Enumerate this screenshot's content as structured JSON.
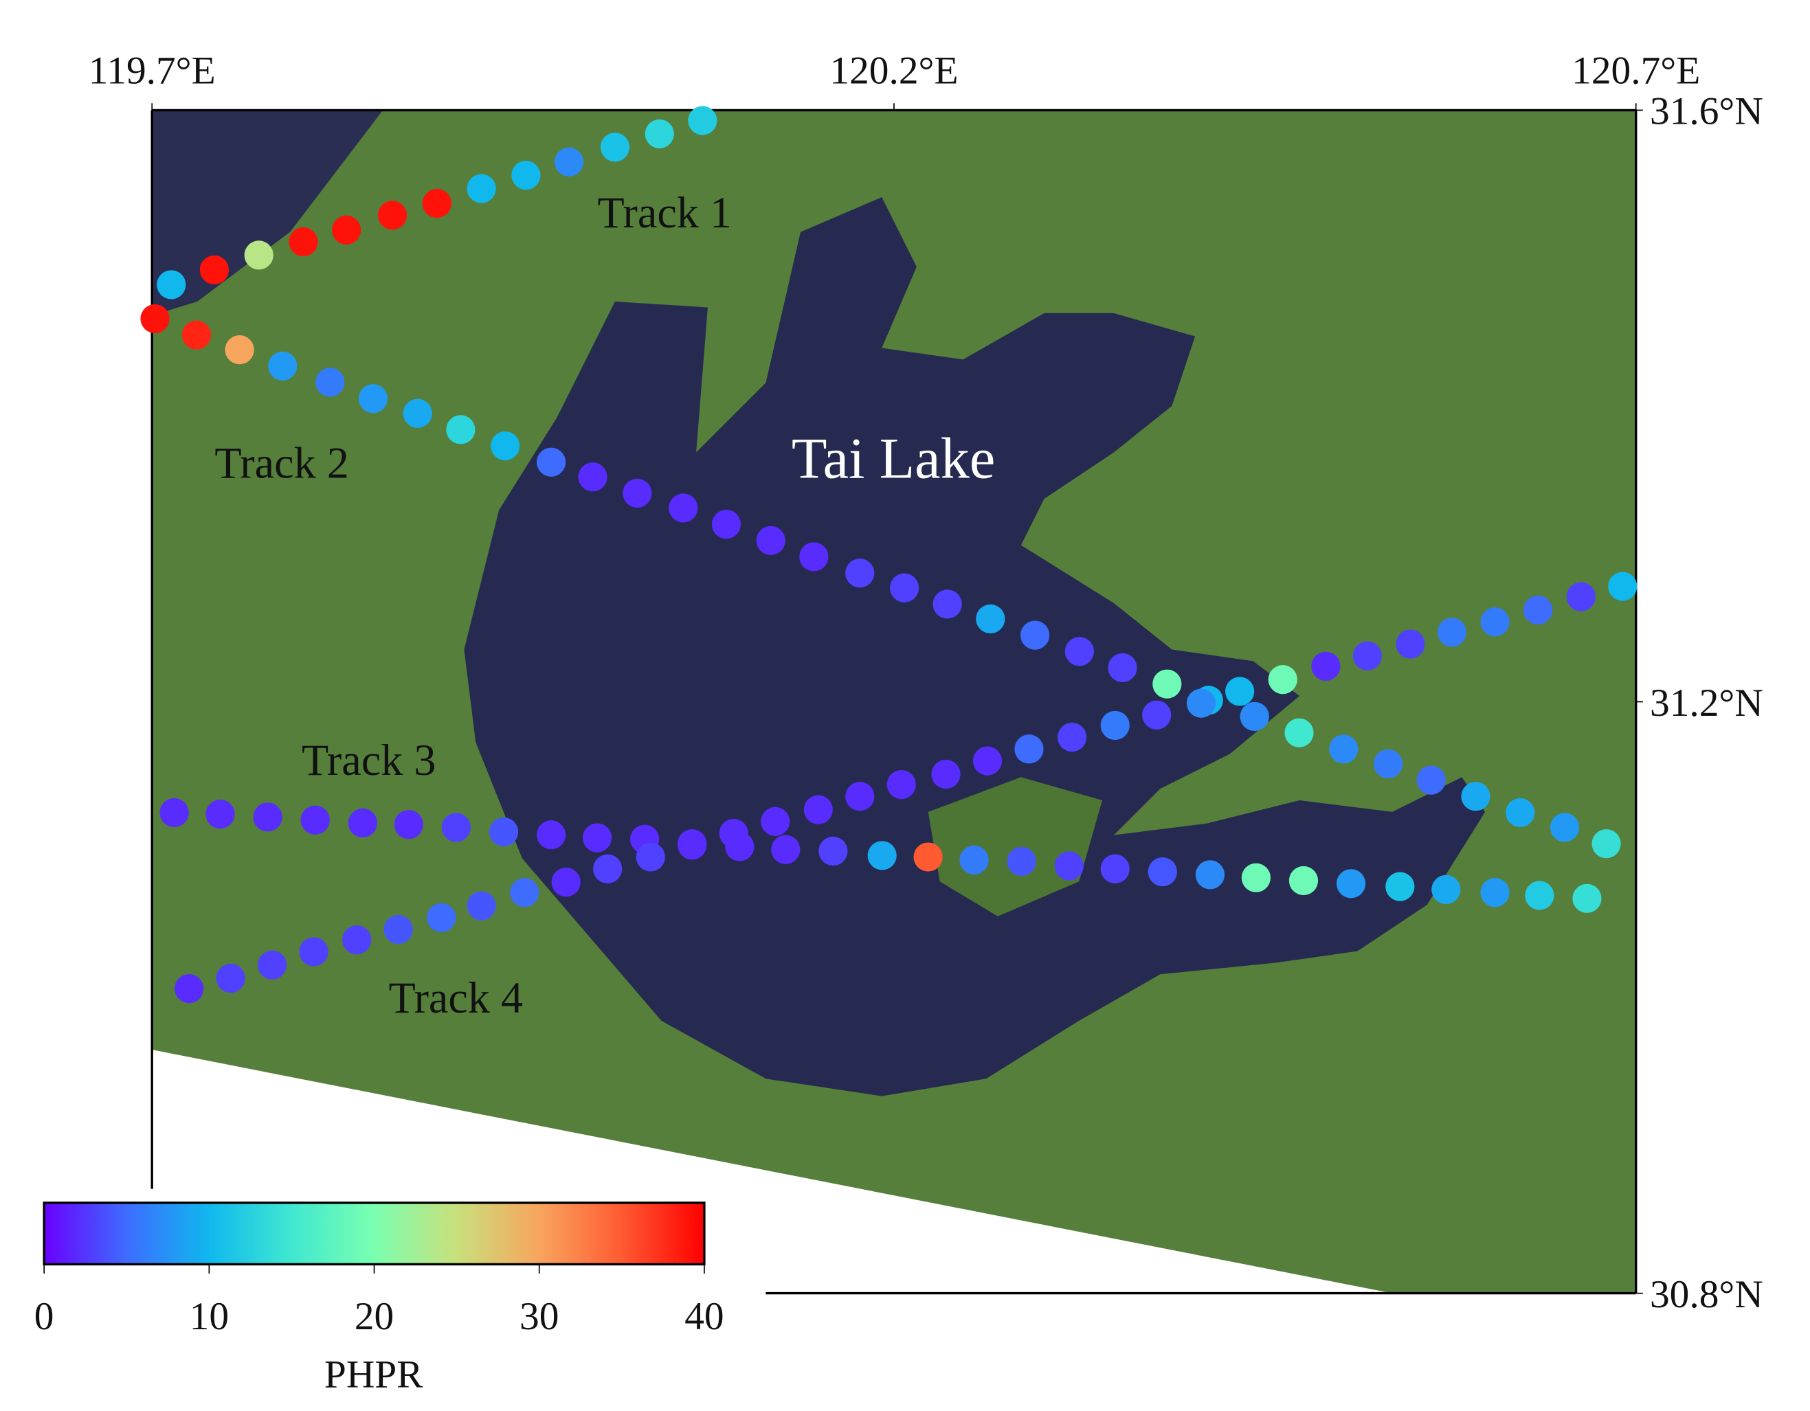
{
  "chart_data": {
    "type": "scatter",
    "annotation": "Tai Lake",
    "xlim": [
      119.7,
      120.7
    ],
    "xticks": [
      {
        "value": 119.7,
        "label": "119.7°E"
      },
      {
        "value": 120.2,
        "label": "120.2°E"
      },
      {
        "value": 120.7,
        "label": "120.7°E"
      }
    ],
    "ylim": [
      30.8,
      31.6
    ],
    "yticks": [
      {
        "value": 30.8,
        "label": "30.8°N"
      },
      {
        "value": 31.2,
        "label": "31.2°N"
      },
      {
        "value": 31.6,
        "label": "31.6°N"
      }
    ],
    "colorbar": {
      "label": "PHPR",
      "lim": [
        0,
        40
      ],
      "ticks": [
        0,
        10,
        20,
        30,
        40
      ],
      "colors": [
        "#6a00ff",
        "#3d6cff",
        "#10b8ee",
        "#40e8d0",
        "#7affb0",
        "#c8e07c",
        "#f8a55e",
        "#ff5a32",
        "#ff0000"
      ]
    },
    "series": [
      {
        "name": "Track 1",
        "x": [
          119.713,
          119.742,
          119.772,
          119.802,
          119.831,
          119.862,
          119.892,
          119.922,
          119.952,
          119.981,
          120.012,
          120.042,
          120.071
        ],
        "y": [
          31.482,
          31.492,
          31.502,
          31.511,
          31.519,
          31.529,
          31.537,
          31.547,
          31.556,
          31.565,
          31.575,
          31.584,
          31.593
        ],
        "values": [
          10,
          39,
          24,
          39,
          39,
          39,
          39,
          10,
          10,
          7,
          11,
          13,
          12
        ]
      },
      {
        "name": "Track 2",
        "x": [
          119.702,
          119.73,
          119.759,
          119.788,
          119.82,
          119.849,
          119.879,
          119.908,
          119.938,
          119.969,
          119.997,
          120.027,
          120.058,
          120.087,
          120.117,
          120.146,
          120.177,
          120.207,
          120.236,
          120.265,
          120.295,
          120.325,
          120.354,
          120.384,
          120.412,
          120.443,
          120.473,
          120.503,
          120.533,
          120.562,
          120.592,
          120.622,
          120.652,
          120.68
        ],
        "y": [
          31.459,
          31.448,
          31.438,
          31.427,
          31.416,
          31.405,
          31.395,
          31.384,
          31.373,
          31.362,
          31.352,
          31.341,
          31.331,
          31.32,
          31.309,
          31.298,
          31.287,
          31.277,
          31.266,
          31.256,
          31.245,
          31.234,
          31.223,
          31.212,
          31.201,
          31.19,
          31.179,
          31.168,
          31.158,
          31.147,
          31.136,
          31.125,
          31.115,
          31.104
        ],
        "values": [
          39,
          38,
          30,
          8,
          6,
          8,
          9,
          13,
          10,
          5,
          2,
          2,
          2,
          2,
          2,
          2,
          3,
          3,
          3,
          9,
          5,
          3,
          3,
          19,
          10,
          7,
          15,
          7,
          6,
          5,
          9,
          9,
          8,
          14
        ]
      },
      {
        "name": "Track 3",
        "x": [
          119.715,
          119.746,
          119.778,
          119.81,
          119.842,
          119.873,
          119.905,
          119.937,
          119.969,
          120.0,
          120.032,
          120.064,
          120.096,
          120.127,
          120.159,
          120.192,
          120.223,
          120.254,
          120.286,
          120.318,
          120.349,
          120.381,
          120.413,
          120.444,
          120.476,
          120.508,
          120.541,
          120.572,
          120.605,
          120.635,
          120.667
        ],
        "y": [
          31.125,
          31.124,
          31.122,
          31.12,
          31.118,
          31.117,
          31.115,
          31.112,
          31.11,
          31.108,
          31.107,
          31.104,
          31.102,
          31.1,
          31.099,
          31.096,
          31.095,
          31.093,
          31.092,
          31.089,
          31.087,
          31.085,
          31.083,
          31.081,
          31.079,
          31.077,
          31.075,
          31.073,
          31.071,
          31.069,
          31.067
        ],
        "values": [
          2,
          2,
          2,
          2,
          2,
          2,
          3,
          4,
          2,
          2,
          2,
          2,
          2,
          2,
          3,
          9,
          35,
          6,
          4,
          3,
          3,
          4,
          7,
          19,
          19,
          8,
          11,
          9,
          8,
          12,
          14
        ]
      },
      {
        "name": "Track 4",
        "x": [
          119.725,
          119.753,
          119.781,
          119.809,
          119.838,
          119.866,
          119.895,
          119.922,
          119.951,
          119.979,
          120.007,
          120.036,
          120.064,
          120.092,
          120.12,
          120.149,
          120.177,
          120.205,
          120.235,
          120.263,
          120.291,
          120.32,
          120.349,
          120.377,
          120.407,
          120.433,
          120.462,
          120.491,
          120.519,
          120.548,
          120.576,
          120.605,
          120.634,
          120.663,
          120.691
        ],
        "y": [
          31.006,
          31.013,
          31.022,
          31.031,
          31.039,
          31.046,
          31.054,
          31.062,
          31.071,
          31.078,
          31.087,
          31.095,
          31.103,
          31.111,
          31.119,
          31.127,
          31.136,
          31.144,
          31.151,
          31.16,
          31.168,
          31.176,
          31.184,
          31.191,
          31.199,
          31.207,
          31.215,
          31.224,
          31.231,
          31.239,
          31.247,
          31.254,
          31.262,
          31.271,
          31.278
        ],
        "values": [
          2,
          3,
          3,
          3,
          3,
          4,
          5,
          4,
          5,
          2,
          3,
          3,
          2,
          2,
          2,
          2,
          2,
          2,
          2,
          2,
          5,
          3,
          6,
          3,
          7,
          10,
          19,
          2,
          3,
          3,
          6,
          6,
          5,
          3,
          10
        ]
      }
    ]
  }
}
